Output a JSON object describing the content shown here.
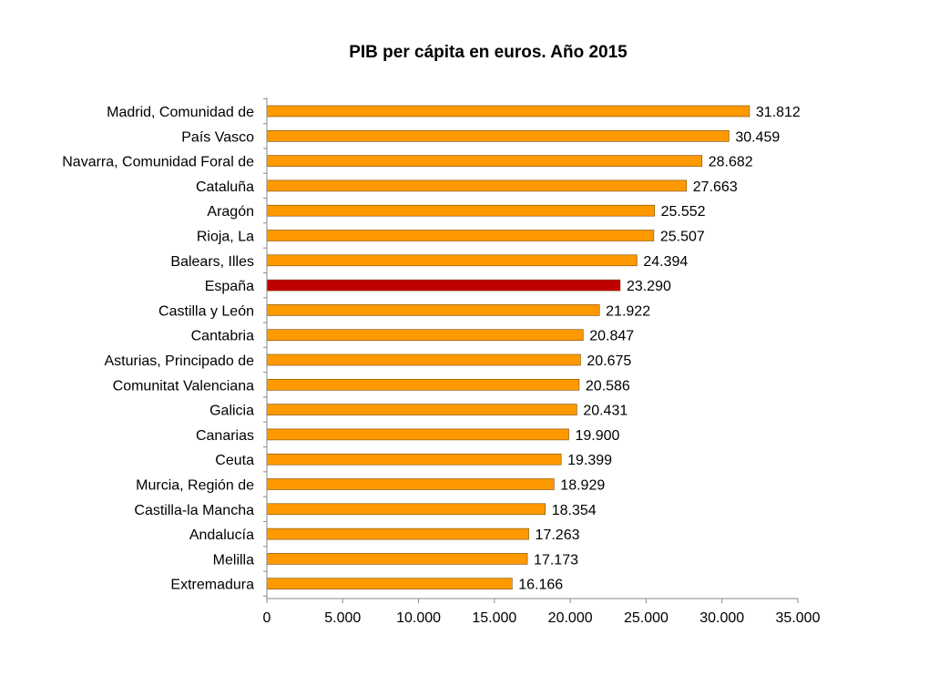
{
  "chart_data": {
    "type": "bar",
    "orientation": "horizontal",
    "title": "PIB per cápita en euros. Año 2015",
    "categories": [
      "Madrid, Comunidad de",
      "País Vasco",
      "Navarra, Comunidad Foral de",
      "Cataluña",
      "Aragón",
      "Rioja, La",
      "Balears, Illes",
      "España",
      "Castilla y León",
      "Cantabria",
      "Asturias, Principado de",
      "Comunitat Valenciana",
      "Galicia",
      "Canarias",
      "Ceuta",
      "Murcia, Región de",
      "Castilla-la Mancha",
      "Andalucía",
      "Melilla",
      "Extremadura"
    ],
    "values": [
      31812,
      30459,
      28682,
      27663,
      25552,
      25507,
      24394,
      23290,
      21922,
      20847,
      20675,
      20586,
      20431,
      19900,
      19399,
      18929,
      18354,
      17263,
      17173,
      16166
    ],
    "value_labels": [
      "31.812",
      "30.459",
      "28.682",
      "27.663",
      "25.552",
      "25.507",
      "24.394",
      "23.290",
      "21.922",
      "20.847",
      "20.675",
      "20.586",
      "20.431",
      "19.900",
      "19.399",
      "18.929",
      "18.354",
      "17.263",
      "17.173",
      "16.166"
    ],
    "xlim": [
      0,
      35000
    ],
    "xticks": [
      0,
      5000,
      10000,
      15000,
      20000,
      25000,
      30000,
      35000
    ],
    "xtick_labels": [
      "0",
      "5.000",
      "10.000",
      "15.000",
      "20.000",
      "25.000",
      "30.000",
      "35.000"
    ],
    "grid": false,
    "legend": "none",
    "colors": {
      "bar": "#FF9900",
      "highlight": "#C00000",
      "highlight_category": "España",
      "axis": "#8A8A8A",
      "text": "#000000"
    }
  }
}
